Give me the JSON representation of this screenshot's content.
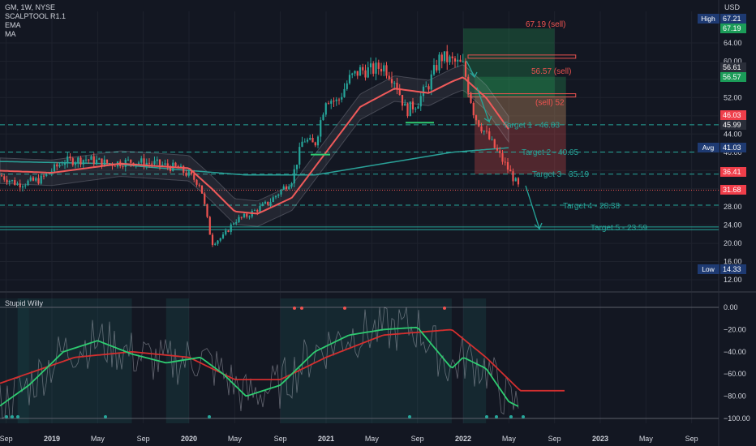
{
  "header": {
    "symbol_line": "GM, 1W, NYSE",
    "indicators": [
      "SCALPTOOL R1.1",
      "EMA",
      "MA"
    ]
  },
  "osc_panel": {
    "title": "Stupid Willy"
  },
  "colors": {
    "background": "#131722",
    "up": "#26a69a",
    "down": "#ef5350",
    "ema": "#f05a5a",
    "ma": "#2aa198",
    "target": "#26a69a",
    "text": "#d1d4dc",
    "label_blue": "#2962ff",
    "label_red": "#ef3e4a",
    "label_green": "#1b9c58"
  },
  "price_axis": {
    "currency": "USD",
    "ticks": [
      "64.00",
      "60.00",
      "52.00",
      "48.00",
      "44.00",
      "40.00",
      "32.00",
      "28.00",
      "24.00",
      "20.00",
      "16.00",
      "12.00"
    ],
    "badges": [
      {
        "label": "High",
        "value": "67.21"
      },
      {
        "label": "",
        "value": "67.19"
      },
      {
        "label": "",
        "value": "56.61"
      },
      {
        "label": "",
        "value": "56.57"
      },
      {
        "label": "",
        "value": "46.03"
      },
      {
        "label": "",
        "value": "45.99"
      },
      {
        "label": "Avg",
        "value": "41.03"
      },
      {
        "label": "",
        "value": "36.41"
      },
      {
        "label": "",
        "value": "31.68"
      },
      {
        "label": "Low",
        "value": "14.33"
      }
    ]
  },
  "osc_axis": {
    "ticks": [
      "0.00",
      "−20.00",
      "−40.00",
      "−60.00",
      "−80.00",
      "−100.00"
    ]
  },
  "time_axis": {
    "ticks": [
      "Sep",
      "2019",
      "May",
      "Sep",
      "2020",
      "May",
      "Sep",
      "2021",
      "May",
      "Sep",
      "2022",
      "May",
      "Sep",
      "2023",
      "May",
      "Sep"
    ]
  },
  "annotations": {
    "sell_1": "67.19 (sell)",
    "sell_2": "56.57 (sell)",
    "sell_3": "(sell) 52",
    "target_1": "Target 1 - 46.03",
    "target_2": "Target 2 - 40.05",
    "target_3": "Target 3 - 35.19",
    "target_4": "Target 4 - 28.38",
    "target_5": "Target 5 - 23.59"
  },
  "chart_data": {
    "type": "candlestick",
    "symbol": "GM",
    "interval": "1W",
    "x_range": [
      "2018-08",
      "2023-10"
    ],
    "ylim": [
      10,
      70
    ],
    "price_levels": {
      "high": 67.21,
      "low": 14.33,
      "avg": 41.03,
      "last": 31.68,
      "sell_levels": [
        67.19,
        56.57,
        52
      ],
      "targets": [
        46.03,
        40.05,
        35.19,
        28.38,
        23.59
      ]
    },
    "price_anchors": [
      [
        "2018-08",
        35.5
      ],
      [
        "2018-10",
        33.0
      ],
      [
        "2018-12",
        34.0
      ],
      [
        "2019-02",
        38.0
      ],
      [
        "2019-04",
        38.5
      ],
      [
        "2019-06",
        37.5
      ],
      [
        "2019-08",
        38.0
      ],
      [
        "2019-10",
        37.5
      ],
      [
        "2019-12",
        36.5
      ],
      [
        "2020-01",
        35.0
      ],
      [
        "2020-02",
        33.0
      ],
      [
        "2020-03",
        20.0
      ],
      [
        "2020-04",
        21.5
      ],
      [
        "2020-05",
        25.0
      ],
      [
        "2020-06",
        26.0
      ],
      [
        "2020-08",
        29.0
      ],
      [
        "2020-10",
        34.0
      ],
      [
        "2020-11",
        43.0
      ],
      [
        "2020-12",
        41.5
      ],
      [
        "2021-01",
        52.0
      ],
      [
        "2021-02",
        51.0
      ],
      [
        "2021-03",
        56.0
      ],
      [
        "2021-04",
        58.0
      ],
      [
        "2021-05",
        58.0
      ],
      [
        "2021-06",
        59.0
      ],
      [
        "2021-07",
        56.0
      ],
      [
        "2021-08",
        49.0
      ],
      [
        "2021-09",
        51.0
      ],
      [
        "2021-10",
        55.0
      ],
      [
        "2021-11",
        61.0
      ],
      [
        "2021-12",
        60.0
      ],
      [
        "2022-01",
        59.0
      ],
      [
        "2022-02",
        48.0
      ],
      [
        "2022-03",
        44.0
      ],
      [
        "2022-04",
        40.0
      ],
      [
        "2022-05",
        36.0
      ],
      [
        "2022-06",
        31.68
      ]
    ],
    "ema_anchors": [
      [
        "2018-08",
        36.0
      ],
      [
        "2019-01",
        35.5
      ],
      [
        "2019-07",
        37.5
      ],
      [
        "2020-01",
        36.5
      ],
      [
        "2020-03",
        32.0
      ],
      [
        "2020-05",
        27.0
      ],
      [
        "2020-07",
        26.5
      ],
      [
        "2020-10",
        30.0
      ],
      [
        "2021-01",
        40.0
      ],
      [
        "2021-04",
        50.0
      ],
      [
        "2021-07",
        54.0
      ],
      [
        "2021-10",
        53.0
      ],
      [
        "2021-12",
        55.5
      ],
      [
        "2022-01",
        56.5
      ],
      [
        "2022-03",
        52.0
      ],
      [
        "2022-05",
        45.0
      ]
    ],
    "ma_anchors": [
      [
        "2018-08",
        38.0
      ],
      [
        "2019-06",
        37.5
      ],
      [
        "2020-01",
        36.0
      ],
      [
        "2020-06",
        35.0
      ],
      [
        "2020-12",
        35.0
      ],
      [
        "2021-06",
        37.5
      ],
      [
        "2021-12",
        40.0
      ],
      [
        "2022-05",
        41.0
      ]
    ],
    "oscillator": {
      "name": "Stupid Willy",
      "ylim": [
        -100,
        0
      ],
      "fast_anchors": [
        [
          "2018-08",
          -92
        ],
        [
          "2018-11",
          -70
        ],
        [
          "2019-02",
          -40
        ],
        [
          "2019-05",
          -30
        ],
        [
          "2019-08",
          -42
        ],
        [
          "2019-11",
          -50
        ],
        [
          "2020-02",
          -45
        ],
        [
          "2020-04",
          -60
        ],
        [
          "2020-06",
          -80
        ],
        [
          "2020-09",
          -70
        ],
        [
          "2020-12",
          -40
        ],
        [
          "2021-03",
          -25
        ],
        [
          "2021-06",
          -20
        ],
        [
          "2021-09",
          -18
        ],
        [
          "2021-12",
          -55
        ],
        [
          "2022-01",
          -45
        ],
        [
          "2022-03",
          -55
        ],
        [
          "2022-05",
          -85
        ],
        [
          "2022-06",
          -90
        ]
      ],
      "slow_anchors": [
        [
          "2018-08",
          -70
        ],
        [
          "2019-03",
          -45
        ],
        [
          "2019-08",
          -40
        ],
        [
          "2020-01",
          -45
        ],
        [
          "2020-05",
          -65
        ],
        [
          "2020-09",
          -65
        ],
        [
          "2021-01",
          -45
        ],
        [
          "2021-06",
          -25
        ],
        [
          "2021-12",
          -20
        ],
        [
          "2022-03",
          -45
        ],
        [
          "2022-06",
          -75
        ]
      ]
    }
  }
}
